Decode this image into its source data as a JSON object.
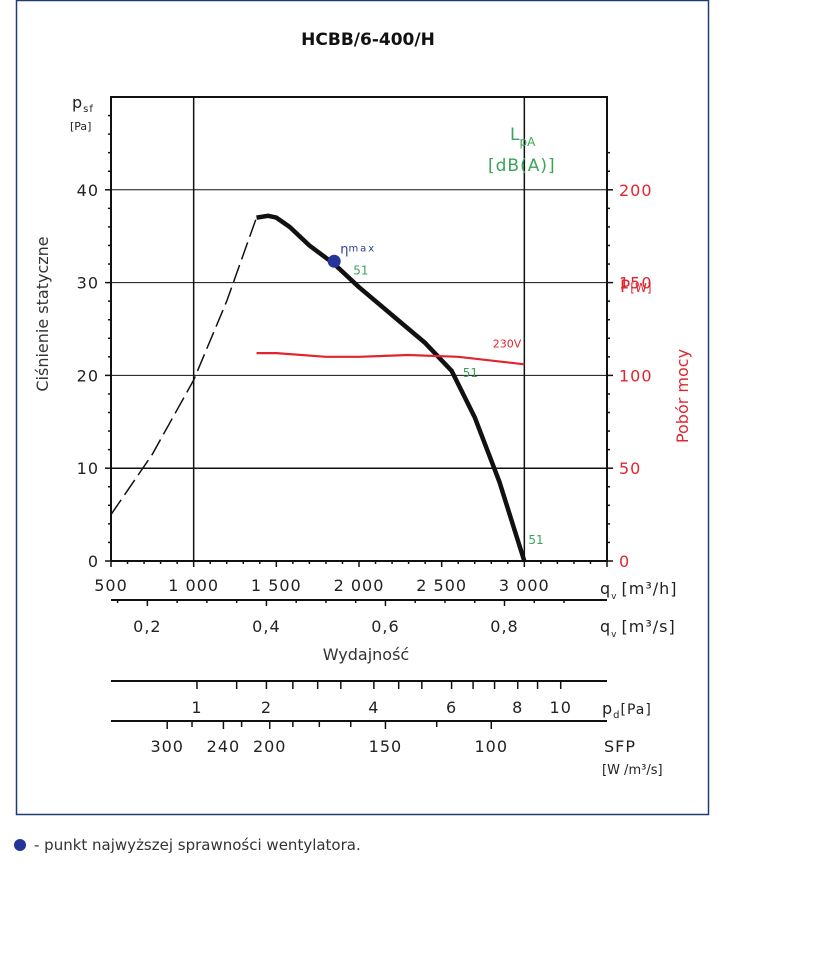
{
  "title": "HCBB/6-400/H",
  "chart_data": {
    "type": "line",
    "title": "HCBB/6-400/H",
    "y_left": {
      "label_symbol": "p",
      "label_sub": "sf",
      "unit": "[Pa]",
      "axis_title": "Ciśnienie statyczne",
      "range": [
        0,
        50
      ],
      "ticks": [
        0,
        10,
        20,
        30,
        40
      ],
      "tick_labels": [
        "0",
        "10",
        "20",
        "30",
        "40"
      ]
    },
    "x_main": {
      "label_symbol": "q",
      "label_sub": "v",
      "unit": "[m³/h]",
      "range": [
        500,
        3500
      ],
      "ticks": [
        500,
        1000,
        1500,
        2000,
        2500,
        3000
      ],
      "tick_labels": [
        "500",
        "1 000",
        "1 500",
        "2 000",
        "2 500",
        "3 000"
      ]
    },
    "x_secondary": {
      "label_symbol": "q",
      "label_sub": "v",
      "unit": "[m³/s]",
      "tick_values": [
        0.2,
        0.4,
        0.6,
        0.8
      ],
      "tick_labels": [
        "0,2",
        "0,4",
        "0,6",
        "0,8"
      ],
      "axis_title": "Wydajność"
    },
    "y_right": {
      "label": "P",
      "unit": "[W]",
      "axis_title": "Pobór mocy",
      "range": [
        0,
        200
      ],
      "ticks": [
        0,
        50,
        100,
        150,
        200
      ],
      "tick_labels": [
        "0",
        "50",
        "100",
        "150",
        "200"
      ]
    },
    "lpa_label": "L",
    "lpa_sub": "pA",
    "lpa_unit": "[dB(A)]",
    "pd_scale": {
      "label": "p",
      "label_sub": "d",
      "unit": "[Pa]",
      "tick_labels": [
        "1",
        "2",
        "4",
        "6",
        "8",
        "10"
      ],
      "tick_flow": [
        1020,
        1440,
        2090,
        2560,
        2960,
        3220
      ]
    },
    "sfp_scale": {
      "label": "SFP",
      "unit": "[W /m³/s]",
      "tick_labels": [
        "300",
        "240",
        "200",
        "150",
        "100"
      ],
      "tick_flow": [
        840,
        1180,
        1460,
        2160,
        2800
      ]
    },
    "series": [
      {
        "name": "dashed",
        "style": "dashed",
        "x": [
          500,
          750,
          1000,
          1200,
          1380
        ],
        "y": [
          5,
          11.5,
          19.5,
          28,
          37
        ]
      },
      {
        "name": "fan curve",
        "style": "solid",
        "x": [
          1380,
          1450,
          1500,
          1580,
          1700,
          1850,
          2000,
          2200,
          2400,
          2560,
          2700,
          2850,
          3000
        ],
        "y": [
          37,
          37.2,
          37,
          36,
          34,
          32,
          29.5,
          26.5,
          23.5,
          20.5,
          15.5,
          8.5,
          0
        ]
      },
      {
        "name": "230V",
        "axis": "right",
        "x": [
          1380,
          1500,
          1800,
          2000,
          2300,
          2600,
          3000
        ],
        "y": [
          112,
          112,
          110,
          110,
          111,
          110,
          106
        ]
      }
    ],
    "max_efficiency_point": {
      "x": 1850,
      "y": 32.3,
      "label": "η",
      "label_sup": "max"
    },
    "lpa_annotations": [
      {
        "x": 1850,
        "y": 32.3,
        "text": "51"
      },
      {
        "x": 2700,
        "y": 19.5,
        "text": "51"
      },
      {
        "x": 3000,
        "y": 1.2,
        "text": "51"
      }
    ],
    "voltage_label": "230V"
  },
  "legend_note": "- punkt najwyższej sprawności wentylatora.",
  "colors": {
    "frame": "#1f3b73",
    "green": "#3aa55a",
    "red": "#e1252f",
    "blue": "#24349a",
    "curve": "#111111"
  }
}
